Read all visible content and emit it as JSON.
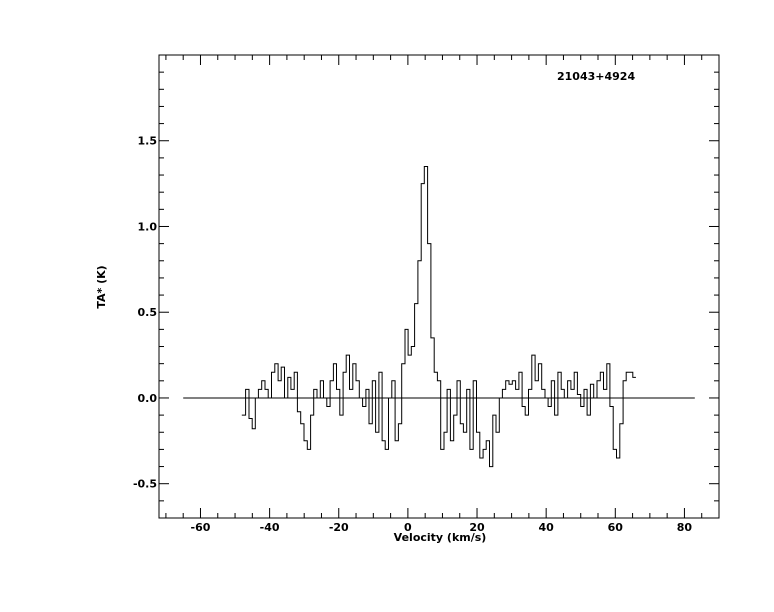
{
  "chart_data": {
    "type": "line",
    "step": true,
    "source_label": "21043+4924",
    "xlabel": "Velocity (km/s)",
    "ylabel": "TA* (K)",
    "xlim": [
      -72,
      90
    ],
    "ylim": [
      -0.7,
      2.0
    ],
    "xticks": [
      -60,
      -40,
      -20,
      0,
      20,
      40,
      60,
      80
    ],
    "xtick_labels": [
      "-60",
      "-40",
      "-20",
      "0",
      "20",
      "40",
      "60",
      "80"
    ],
    "yticks": [
      -0.5,
      0.0,
      0.5,
      1.0,
      1.5
    ],
    "ytick_labels": [
      "-0.5",
      "0.0",
      "0.5",
      "1.0",
      "1.5"
    ],
    "baseline": {
      "y": 0.0,
      "x_range": [
        -65,
        83
      ]
    },
    "series": [
      {
        "x": [
          -47.5,
          -46.4,
          -45.5,
          -44.6,
          -43.7,
          -42.8,
          -41.8,
          -40.9,
          -39.9,
          -39.0,
          -38.0,
          -37.1,
          -36.2,
          -35.2,
          -34.3,
          -33.4,
          -32.4,
          -31.5,
          -30.5,
          -29.6,
          -28.6,
          -27.7,
          -26.8,
          -25.8,
          -24.9,
          -23.9,
          -23.0,
          -22.0,
          -21.1,
          -20.2,
          -19.2,
          -18.3,
          -17.4,
          -16.4,
          -15.5,
          -14.5,
          -13.6,
          -12.6,
          -11.7,
          -10.8,
          -9.8,
          -8.9,
          -7.9,
          -7.0,
          -6.1,
          -5.1,
          -4.2,
          -3.2,
          -2.3,
          -1.3,
          -0.4,
          0.5,
          1.5,
          2.4,
          3.4,
          4.3,
          5.2,
          6.2,
          7.1,
          8.1,
          9.0,
          10.0,
          10.9,
          11.8,
          12.8,
          13.7,
          14.7,
          15.6,
          16.5,
          17.5,
          18.4,
          19.4,
          20.3,
          21.3,
          22.2,
          23.1,
          24.1,
          25.0,
          26.0,
          26.9,
          27.8,
          28.8,
          29.7,
          30.7,
          31.6,
          32.6,
          33.5,
          34.4,
          35.4,
          36.3,
          37.3,
          38.2,
          39.2,
          40.1,
          41.0,
          42.0,
          42.9,
          43.9,
          44.8,
          45.7,
          46.7,
          47.6,
          48.6,
          49.5,
          50.5,
          51.4,
          52.3,
          53.3,
          54.2,
          55.2,
          56.1,
          57.1,
          58.0,
          58.9,
          59.9,
          60.8,
          61.8,
          62.7,
          63.6,
          64.6,
          65.5
        ],
        "y": [
          -0.1,
          0.05,
          -0.12,
          -0.18,
          0.0,
          0.05,
          0.1,
          0.05,
          0.0,
          0.15,
          0.2,
          0.1,
          0.18,
          0.0,
          0.12,
          0.05,
          0.15,
          -0.08,
          -0.15,
          -0.25,
          -0.3,
          -0.1,
          0.05,
          0.0,
          0.1,
          0.0,
          -0.05,
          0.1,
          0.2,
          0.05,
          -0.1,
          0.15,
          0.25,
          0.05,
          0.2,
          0.1,
          0.0,
          -0.05,
          0.05,
          -0.15,
          0.1,
          -0.2,
          0.15,
          -0.25,
          -0.3,
          0.0,
          0.1,
          -0.25,
          -0.15,
          0.2,
          0.4,
          0.25,
          0.3,
          0.55,
          0.8,
          1.25,
          1.35,
          0.9,
          0.35,
          0.15,
          0.1,
          -0.3,
          -0.2,
          0.05,
          -0.25,
          -0.1,
          0.1,
          -0.15,
          -0.2,
          0.05,
          -0.3,
          0.1,
          -0.2,
          -0.35,
          -0.3,
          -0.25,
          -0.4,
          -0.1,
          -0.2,
          0.0,
          0.05,
          0.1,
          0.08,
          0.1,
          0.05,
          0.15,
          -0.05,
          -0.1,
          0.05,
          0.25,
          0.1,
          0.2,
          0.05,
          0.0,
          -0.05,
          0.1,
          -0.1,
          0.15,
          0.05,
          0.0,
          0.1,
          0.05,
          0.15,
          0.02,
          -0.05,
          0.05,
          -0.1,
          0.08,
          0.0,
          0.1,
          0.15,
          0.05,
          0.2,
          -0.05,
          -0.3,
          -0.35,
          -0.15,
          0.1,
          0.15,
          0.15,
          0.12
        ]
      }
    ]
  }
}
